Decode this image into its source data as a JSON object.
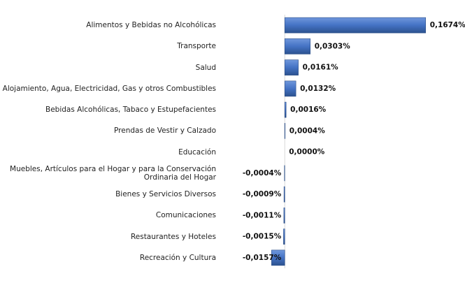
{
  "chart_data": {
    "type": "barh",
    "categories": [
      "Alimentos y Bebidas no Alcohólicas",
      "Transporte",
      "Salud",
      "Alojamiento, Agua, Electricidad, Gas y otros Combustibles",
      "Bebidas Alcohólicas, Tabaco y Estupefacientes",
      "Prendas de Vestir y Calzado",
      "Educación",
      "Muebles, Artículos para el Hogar y para la Conservación Ordinaria del Hogar",
      "Bienes y Servicios Diversos",
      "Comunicaciones",
      "Restaurantes y Hoteles",
      "Recreación y Cultura"
    ],
    "values": [
      0.1674,
      0.0303,
      0.0161,
      0.0132,
      0.0016,
      0.0004,
      0.0,
      -0.0004,
      -0.0009,
      -0.0011,
      -0.0015,
      -0.0157
    ],
    "value_labels": [
      "0,1674%",
      "0,0303%",
      "0,0161%",
      "0,0132%",
      "0,0016%",
      "0,0004%",
      "0,0000%",
      "-0,0004%",
      "-0,0009%",
      "-0,0011%",
      "-0,0015%",
      "-0,0157%"
    ],
    "color": "#4472c4",
    "xlim": [
      -0.065,
      0.21
    ]
  }
}
